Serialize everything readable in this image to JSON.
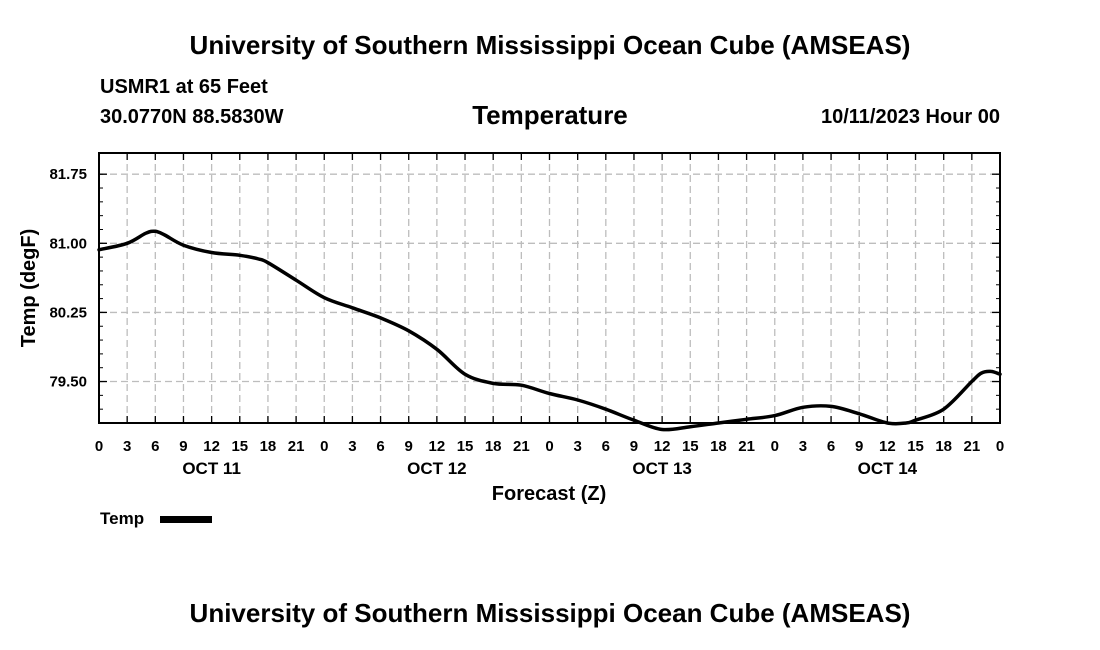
{
  "header": {
    "title": "University of Southern Mississippi Ocean Cube (AMSEAS)",
    "station": "USMR1 at 65 Feet",
    "coords": "30.0770N  88.5830W",
    "variable": "Temperature",
    "datetime": "10/11/2023 Hour 00"
  },
  "footer": {
    "title": "University of Southern Mississippi Ocean Cube (AMSEAS)"
  },
  "chart_data": {
    "type": "line",
    "title": "Temperature",
    "xlabel": "Forecast (Z)",
    "ylabel": "Temp (degF)",
    "xlim": [
      0,
      96
    ],
    "ylim": [
      79.05,
      81.98
    ],
    "yticks": [
      "81.75",
      "81.00",
      "80.25",
      "79.50"
    ],
    "ytick_values": [
      81.75,
      81.0,
      80.25,
      79.5
    ],
    "xtick_hours": [
      0,
      3,
      6,
      9,
      12,
      15,
      18,
      21,
      24,
      27,
      30,
      33,
      36,
      39,
      42,
      45,
      48,
      51,
      54,
      57,
      60,
      63,
      66,
      69,
      72,
      75,
      78,
      81,
      84,
      87,
      90,
      93,
      96
    ],
    "xtick_labels": [
      "0",
      "3",
      "6",
      "9",
      "12",
      "15",
      "18",
      "21",
      "0",
      "3",
      "6",
      "9",
      "12",
      "15",
      "18",
      "21",
      "0",
      "3",
      "6",
      "9",
      "12",
      "15",
      "18",
      "21",
      "0",
      "3",
      "6",
      "9",
      "12",
      "15",
      "18",
      "21",
      "0"
    ],
    "day_labels": [
      "OCT 11",
      "OCT 12",
      "OCT 13",
      "OCT 14"
    ],
    "day_label_hours": [
      12,
      36,
      60,
      84
    ],
    "grid": true,
    "legend_position": "bottom-left",
    "series": [
      {
        "name": "Temp",
        "color": "#000000",
        "x": [
          0,
          3,
          5,
          6,
          7,
          9,
          12,
          15,
          17,
          18,
          21,
          24,
          27,
          30,
          33,
          36,
          39,
          42,
          45,
          48,
          51,
          54,
          57,
          60,
          63,
          66,
          69,
          72,
          75,
          78,
          81,
          84,
          86,
          87,
          90,
          93,
          94,
          95,
          96
        ],
        "values": [
          80.93,
          81.0,
          81.11,
          81.13,
          81.09,
          80.98,
          80.9,
          80.87,
          80.83,
          80.79,
          80.6,
          80.41,
          80.3,
          80.19,
          80.05,
          79.85,
          79.58,
          79.48,
          79.46,
          79.37,
          79.3,
          79.2,
          79.08,
          78.98,
          79.01,
          79.05,
          79.09,
          79.13,
          79.22,
          79.23,
          79.15,
          79.05,
          79.05,
          79.08,
          79.2,
          79.5,
          79.59,
          79.61,
          79.58
        ]
      }
    ]
  }
}
